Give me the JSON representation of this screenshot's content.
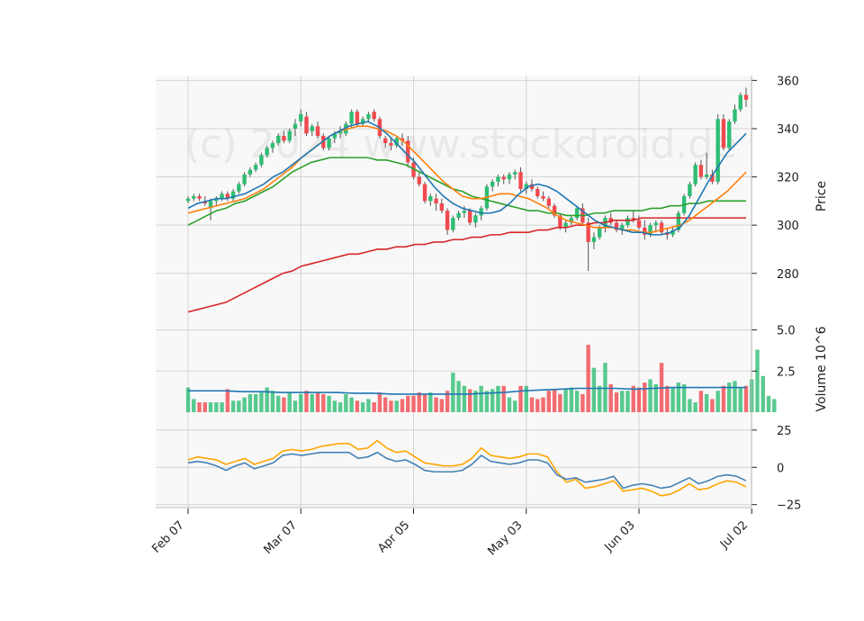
{
  "watermark": "(c) 2024 www.stockdroid.de",
  "colors": {
    "up": "#2ebd73",
    "down": "#f0494f",
    "panel_bg": "#f8f8f8",
    "grid": "#d3d3d3",
    "ma_fast": "#1f77b4",
    "ma_mid": "#ff7f0e",
    "ma_slow": "#2ca02c",
    "ma_long": "#d62728",
    "vol_avg": "#1f77b4",
    "osc_a": "#4682b4",
    "osc_b": "#ffa500"
  },
  "chart_data": [
    {
      "type": "candlestick",
      "title": "",
      "ylabel": "Price",
      "ylim": [
        262,
        362
      ],
      "yticks": [
        280,
        300,
        320,
        340,
        360
      ],
      "x_ticks": [
        {
          "label": "Feb 07",
          "index": 0
        },
        {
          "label": "Mar 07",
          "index": 20
        },
        {
          "label": "Apr 05",
          "index": 40
        },
        {
          "label": "May 03",
          "index": 60
        },
        {
          "label": "Jun 03",
          "index": 80
        },
        {
          "label": "Jul 02",
          "index": 100
        },
        {
          "label": "",
          "index": 120
        }
      ],
      "ohlc": [
        [
          310,
          312,
          309,
          311
        ],
        [
          311,
          313,
          310,
          312
        ],
        [
          312,
          313,
          310,
          311
        ],
        [
          310,
          312,
          308,
          309
        ],
        [
          307,
          311,
          302,
          310
        ],
        [
          310,
          312,
          308,
          311
        ],
        [
          311,
          314,
          310,
          313
        ],
        [
          313,
          314,
          310,
          311
        ],
        [
          311,
          315,
          310,
          314
        ],
        [
          314,
          318,
          313,
          317
        ],
        [
          317,
          322,
          316,
          321
        ],
        [
          321,
          324,
          320,
          323
        ],
        [
          323,
          326,
          322,
          325
        ],
        [
          325,
          330,
          324,
          329
        ],
        [
          329,
          333,
          328,
          332
        ],
        [
          332,
          335,
          330,
          334
        ],
        [
          334,
          338,
          333,
          337
        ],
        [
          337,
          339,
          334,
          335
        ],
        [
          335,
          340,
          334,
          339
        ],
        [
          340,
          344,
          337,
          342
        ],
        [
          343,
          348,
          341,
          346
        ],
        [
          345,
          347,
          337,
          338
        ],
        [
          339,
          342,
          337,
          341
        ],
        [
          341,
          343,
          336,
          337
        ],
        [
          337,
          338,
          331,
          332
        ],
        [
          332,
          337,
          331,
          336
        ],
        [
          336,
          339,
          334,
          338
        ],
        [
          338,
          341,
          336,
          339
        ],
        [
          338,
          343,
          337,
          342
        ],
        [
          342,
          348,
          340,
          347
        ],
        [
          347,
          348,
          341,
          342
        ],
        [
          342,
          345,
          341,
          344
        ],
        [
          344,
          347,
          343,
          346
        ],
        [
          347,
          348,
          343,
          344
        ],
        [
          344,
          345,
          336,
          337
        ],
        [
          336,
          337,
          332,
          334
        ],
        [
          334,
          336,
          331,
          333
        ],
        [
          333,
          337,
          332,
          336
        ],
        [
          336,
          338,
          333,
          335
        ],
        [
          335,
          337,
          324,
          326
        ],
        [
          326,
          328,
          319,
          320
        ],
        [
          320,
          322,
          316,
          317
        ],
        [
          317,
          318,
          309,
          310
        ],
        [
          310,
          313,
          308,
          312
        ],
        [
          311,
          313,
          306,
          309
        ],
        [
          309,
          311,
          305,
          306
        ],
        [
          306,
          307,
          296,
          298
        ],
        [
          298,
          304,
          297,
          303
        ],
        [
          303,
          306,
          302,
          305
        ],
        [
          305,
          308,
          303,
          306
        ],
        [
          306,
          307,
          300,
          301
        ],
        [
          301,
          305,
          299,
          304
        ],
        [
          304,
          308,
          302,
          307
        ],
        [
          307,
          317,
          306,
          316
        ],
        [
          316,
          319,
          314,
          318
        ],
        [
          318,
          321,
          316,
          320
        ],
        [
          320,
          321,
          317,
          319
        ],
        [
          319,
          322,
          317,
          321
        ],
        [
          321,
          323,
          319,
          322
        ],
        [
          322,
          324,
          314,
          315
        ],
        [
          315,
          318,
          313,
          317
        ],
        [
          317,
          319,
          314,
          315
        ],
        [
          315,
          316,
          311,
          312
        ],
        [
          312,
          314,
          310,
          311
        ],
        [
          311,
          312,
          307,
          308
        ],
        [
          308,
          309,
          303,
          304
        ],
        [
          304,
          305,
          298,
          299
        ],
        [
          299,
          302,
          297,
          301
        ],
        [
          301,
          304,
          300,
          303
        ],
        [
          303,
          308,
          302,
          307
        ],
        [
          307,
          309,
          300,
          301
        ],
        [
          301,
          303,
          281,
          293
        ],
        [
          293,
          297,
          290,
          295
        ],
        [
          295,
          300,
          294,
          299
        ],
        [
          299,
          304,
          297,
          303
        ],
        [
          303,
          305,
          300,
          301
        ],
        [
          301,
          302,
          297,
          298
        ],
        [
          298,
          301,
          296,
          300
        ],
        [
          300,
          304,
          299,
          303
        ],
        [
          303,
          306,
          301,
          302
        ],
        [
          302,
          304,
          298,
          299
        ],
        [
          299,
          302,
          294,
          296
        ],
        [
          296,
          301,
          295,
          300
        ],
        [
          300,
          302,
          297,
          301
        ],
        [
          301,
          302,
          296,
          297
        ],
        [
          297,
          299,
          294,
          296
        ],
        [
          296,
          299,
          295,
          298
        ],
        [
          298,
          306,
          297,
          305
        ],
        [
          305,
          313,
          304,
          312
        ],
        [
          312,
          318,
          311,
          317
        ],
        [
          317,
          326,
          316,
          325
        ],
        [
          325,
          327,
          319,
          320
        ],
        [
          320,
          330,
          319,
          321
        ],
        [
          321,
          323,
          317,
          318
        ],
        [
          318,
          346,
          317,
          344
        ],
        [
          344,
          346,
          331,
          332
        ],
        [
          332,
          344,
          331,
          343
        ],
        [
          343,
          350,
          342,
          348
        ],
        [
          348,
          355,
          347,
          354
        ],
        [
          354,
          357,
          349,
          352
        ]
      ],
      "ma_fast": [
        307,
        309,
        310,
        311,
        311,
        312,
        313,
        315,
        317,
        320,
        322,
        325,
        328,
        331,
        334,
        337,
        339,
        341,
        342,
        343,
        341,
        338,
        334,
        330,
        326,
        321,
        316,
        312,
        309,
        307,
        306,
        305,
        305,
        306,
        309,
        313,
        316,
        317,
        316,
        314,
        311,
        308,
        305,
        302,
        300,
        299,
        298,
        297,
        297,
        296,
        296,
        297,
        299,
        304,
        311,
        318,
        324,
        330,
        334,
        338
      ],
      "ma_mid": [
        305,
        306,
        307,
        308,
        309,
        310,
        311,
        313,
        315,
        318,
        321,
        324,
        328,
        331,
        334,
        337,
        339,
        340,
        341,
        341,
        340,
        339,
        337,
        334,
        330,
        326,
        322,
        318,
        315,
        312,
        311,
        311,
        312,
        313,
        313,
        312,
        311,
        309,
        307,
        304,
        302,
        301,
        300,
        299,
        299,
        299,
        298,
        298,
        297,
        297,
        298,
        299,
        300,
        302,
        305,
        308,
        311,
        314,
        318,
        322
      ],
      "ma_slow": [
        300,
        302,
        304,
        306,
        307,
        309,
        310,
        312,
        314,
        316,
        319,
        322,
        324,
        326,
        327,
        328,
        328,
        328,
        328,
        328,
        327,
        327,
        326,
        325,
        323,
        321,
        319,
        317,
        315,
        314,
        312,
        311,
        310,
        309,
        308,
        307,
        306,
        306,
        305,
        305,
        304,
        304,
        304,
        305,
        305,
        306,
        306,
        306,
        306,
        307,
        307,
        308,
        308,
        309,
        309,
        310,
        310,
        310,
        310,
        310
      ],
      "ma_long": [
        264,
        265,
        266,
        267,
        268,
        270,
        272,
        274,
        276,
        278,
        280,
        281,
        283,
        284,
        285,
        286,
        287,
        288,
        288,
        289,
        290,
        290,
        291,
        291,
        292,
        292,
        293,
        293,
        294,
        294,
        295,
        295,
        296,
        296,
        297,
        297,
        297,
        298,
        298,
        299,
        299,
        300,
        300,
        301,
        301,
        302,
        302,
        302,
        303,
        303,
        303,
        303,
        303,
        303,
        303,
        303,
        303,
        303,
        303,
        303
      ]
    },
    {
      "type": "bar",
      "title": "",
      "ylabel": "Volume  10^6",
      "ylim": [
        0,
        5.8
      ],
      "yticks": [
        2.5,
        5.0
      ],
      "volume": [
        1.5,
        0.8,
        0.6,
        0.6,
        0.6,
        0.6,
        0.6,
        1.4,
        0.7,
        0.7,
        0.9,
        1.1,
        1.1,
        1.2,
        1.5,
        1.3,
        1.0,
        0.9,
        1.2,
        0.7,
        1.1,
        1.3,
        1.1,
        1.2,
        1.1,
        1.0,
        0.7,
        0.6,
        1.1,
        0.9,
        0.7,
        0.6,
        0.8,
        0.6,
        1.2,
        0.9,
        0.7,
        0.7,
        0.8,
        1.0,
        1.0,
        1.2,
        1.1,
        1.2,
        0.9,
        0.8,
        1.3,
        2.4,
        1.9,
        1.6,
        1.4,
        1.3,
        1.6,
        1.3,
        1.4,
        1.6,
        1.6,
        0.9,
        0.7,
        1.6,
        1.6,
        0.9,
        0.8,
        0.9,
        1.3,
        1.4,
        1.1,
        1.4,
        1.5,
        1.3,
        1.1,
        4.1,
        2.7,
        1.6,
        3.0,
        1.7,
        1.2,
        1.3,
        1.3,
        1.6,
        1.5,
        1.8,
        2.0,
        1.7,
        3.0,
        1.6,
        1.5,
        1.8,
        1.7,
        0.8,
        0.6,
        1.3,
        1.1,
        0.8,
        1.3,
        1.6,
        1.8,
        1.9,
        1.5,
        1.6,
        2.0,
        3.8,
        2.2,
        1.0,
        0.8
      ],
      "vol_avg": [
        1.3,
        1.3,
        1.3,
        1.25,
        1.25,
        1.2,
        1.2,
        1.2,
        1.2,
        1.15,
        1.15,
        1.1,
        1.1,
        1.1,
        1.1,
        1.1,
        1.15,
        1.2,
        1.3,
        1.35,
        1.4,
        1.45,
        1.45,
        1.45,
        1.4,
        1.45,
        1.5,
        1.5,
        1.5,
        1.5
      ],
      "vol_avg_x": [
        0,
        4,
        8,
        12,
        16,
        20,
        24,
        28,
        32,
        36,
        40,
        44,
        48,
        52,
        56,
        60,
        64,
        68,
        72,
        76,
        80,
        84,
        88,
        92,
        96,
        100,
        104,
        108,
        112,
        120
      ]
    },
    {
      "type": "line",
      "title": "",
      "ylabel": "",
      "ylim": [
        -27,
        37
      ],
      "yticks": [
        -25,
        0,
        25
      ],
      "series_a": [
        3,
        4,
        3,
        1,
        -2,
        1,
        3,
        -1,
        1,
        3,
        8,
        9,
        8,
        9,
        10,
        10,
        10,
        10,
        6,
        7,
        10,
        6,
        4,
        5,
        2,
        -2,
        -3,
        -3,
        -3,
        -2,
        2,
        8,
        4,
        3,
        2,
        3,
        5,
        5,
        3,
        -5,
        -8,
        -7,
        -10,
        -9,
        -8,
        -6,
        -14,
        -12,
        -11,
        -12,
        -14,
        -13,
        -10,
        -7,
        -11,
        -9,
        -6,
        -5,
        -6,
        -9
      ],
      "series_b": [
        5,
        7,
        6,
        5,
        2,
        4,
        6,
        2,
        4,
        6,
        11,
        12,
        11,
        12,
        14,
        15,
        16,
        16,
        12,
        13,
        18,
        13,
        10,
        11,
        7,
        3,
        2,
        1,
        1,
        2,
        6,
        13,
        8,
        7,
        6,
        7,
        9,
        9,
        7,
        -3,
        -10,
        -8,
        -14,
        -13,
        -11,
        -9,
        -16,
        -15,
        -14,
        -16,
        -19,
        -18,
        -15,
        -11,
        -15,
        -14,
        -11,
        -9,
        -10,
        -13
      ]
    }
  ]
}
